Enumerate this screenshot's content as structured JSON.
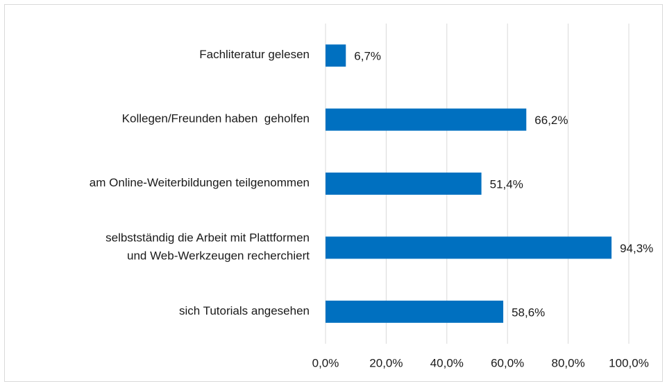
{
  "chart_data": {
    "type": "barh",
    "categories": [
      "Fachliteratur gelesen",
      "Kollegen/Freunden haben  geholfen",
      "am Online-Weiterbildungen teilgenommen",
      "selbstständig die Arbeit mit Plattformen\nund Web-Werkzeugen recherchiert",
      "sich Tutorials angesehen"
    ],
    "values": [
      6.7,
      66.2,
      51.4,
      94.3,
      58.6
    ],
    "value_labels": [
      "6,7%",
      "66,2%",
      "51,4%",
      "94,3%",
      "58,6%"
    ],
    "color": "#0070c0",
    "xlim": [
      0,
      100
    ],
    "xticks": [
      {
        "value": 0,
        "label": "0,0%"
      },
      {
        "value": 20,
        "label": "20,0%"
      },
      {
        "value": 40,
        "label": "40,0%"
      },
      {
        "value": 60,
        "label": "60,0%"
      },
      {
        "value": 80,
        "label": "80,0%"
      },
      {
        "value": 100,
        "label": "100,0%"
      }
    ],
    "grid": true
  }
}
